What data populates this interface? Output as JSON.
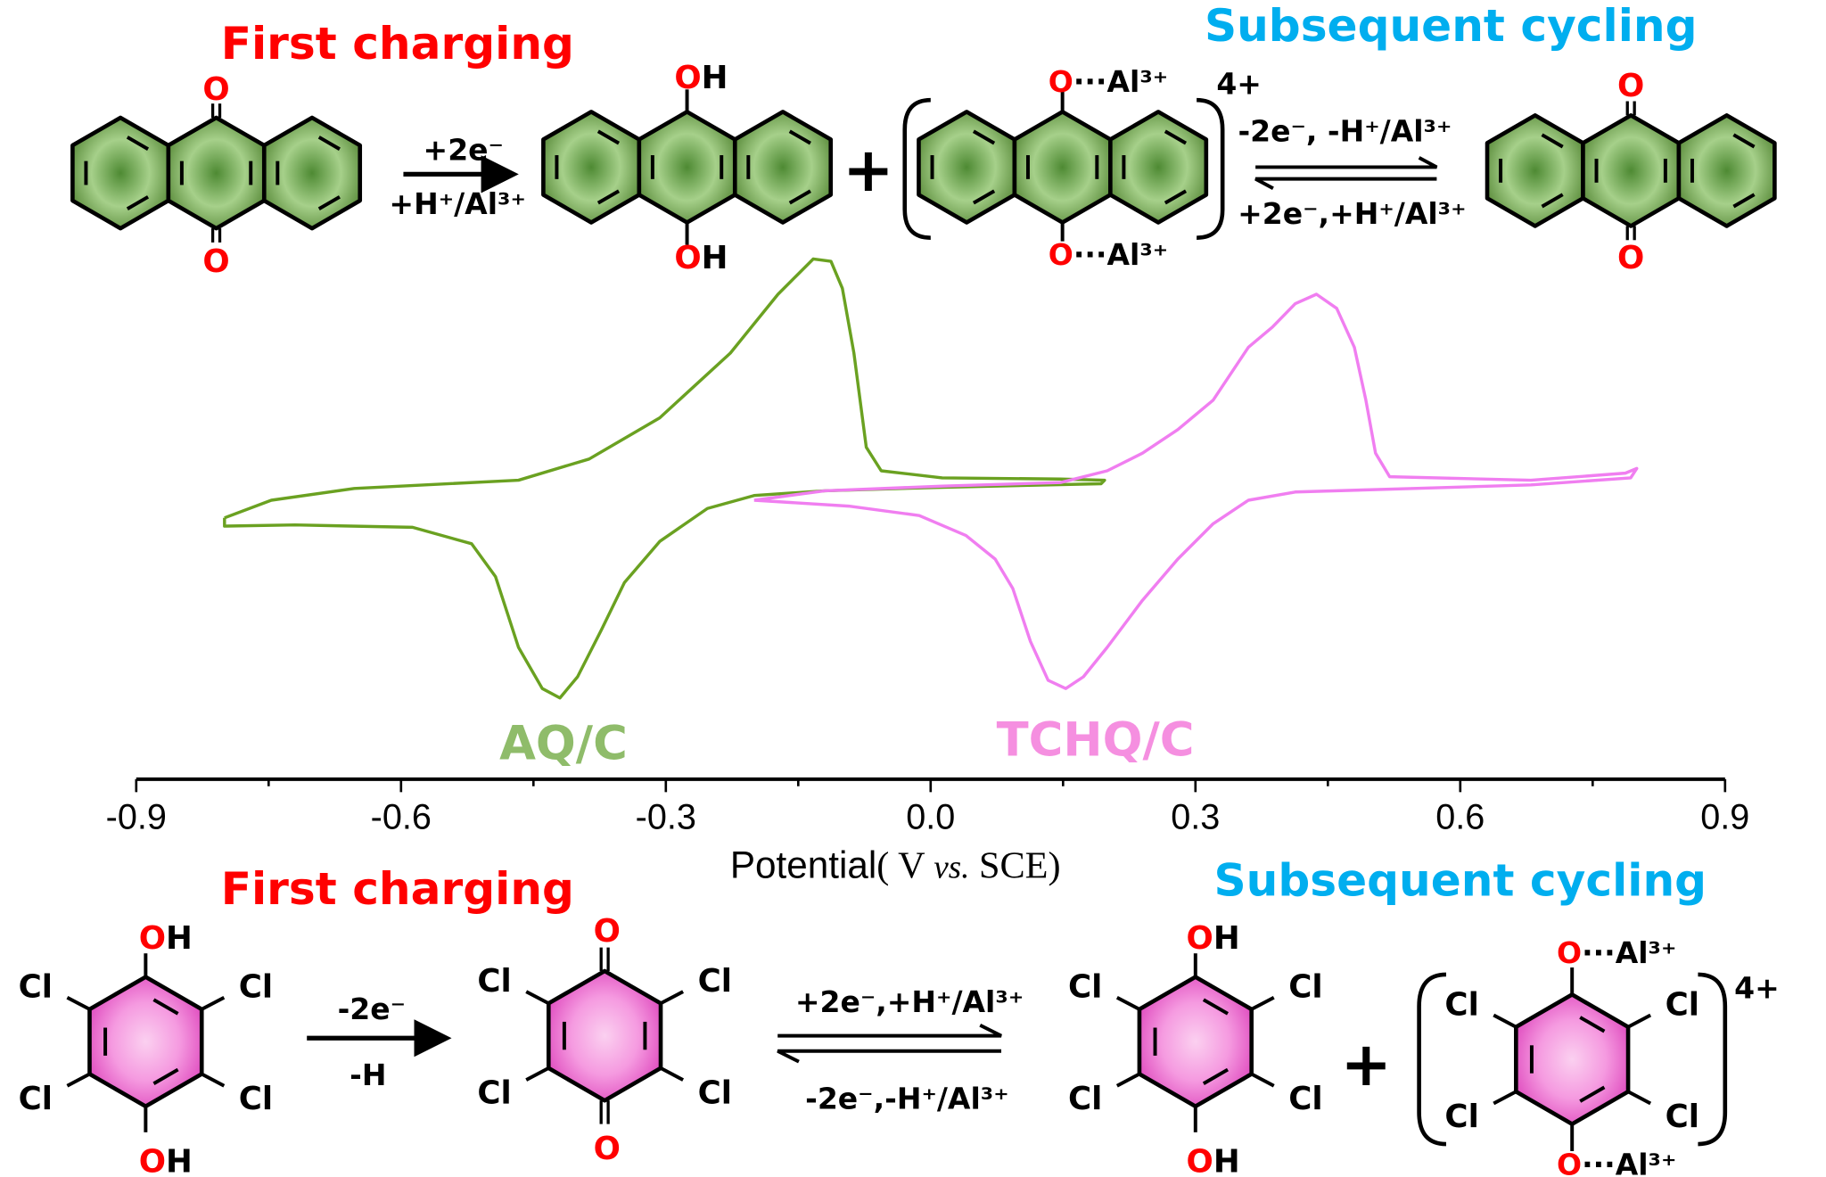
{
  "top_scheme": {
    "title_first": "First charging",
    "title_subsequent": "Subsequent cycling",
    "arrow1_top": "+2e⁻",
    "arrow1_bottom": "+H⁺/Al³⁺",
    "eq_top": "-2e⁻, -H⁺/Al³⁺",
    "eq_bottom": "+2e⁻,+H⁺/Al³⁺",
    "plus": "+",
    "charge": "4+"
  },
  "bottom_scheme": {
    "title_first": "First charging",
    "title_subsequent": "Subsequent cycling",
    "arrow1_top": "-2e⁻",
    "arrow1_bottom": "-H",
    "eq_top": "+2e⁻,+H⁺/Al³⁺",
    "eq_bottom": "-2e⁻,-H⁺/Al³⁺",
    "plus": "+",
    "charge": "4+"
  },
  "atoms": {
    "oxygen": "O",
    "hydrogen": "H",
    "al_coord": "···Al³⁺",
    "chlorine": "Cl"
  },
  "colors": {
    "aq_curve": "#6aa121",
    "tchq_curve": "#f07ef0",
    "aq_label": "#8fbc6a",
    "tchq_label": "#f58fe0",
    "aq_ring": "#5e8f3f",
    "tchq_ring": "#e95fc6",
    "title_red": "#ff0000",
    "title_cyan": "#00aeef"
  },
  "chart_data": {
    "type": "line",
    "title": "",
    "xlabel": "Potential ( V vs. SCE)",
    "xlabel_parts": [
      "Potential",
      "( V ",
      "vs.",
      " SCE)"
    ],
    "ylabel": "",
    "xlim": [
      -0.9,
      0.9
    ],
    "xticks": [
      "-0.9",
      "-0.6",
      "-0.3",
      "0.0",
      "0.3",
      "0.6",
      "0.9"
    ],
    "minor_ticks": true,
    "grid": false,
    "y_axis_shown": false,
    "y_units": "arbitrary current",
    "series": [
      {
        "name": "AQ/C",
        "color": "#6aa121",
        "points": [
          [
            -0.8,
            -0.3
          ],
          [
            -0.747,
            -0.15
          ],
          [
            -0.653,
            -0.05
          ],
          [
            -0.467,
            0.02
          ],
          [
            -0.387,
            0.2
          ],
          [
            -0.307,
            0.55
          ],
          [
            -0.227,
            1.1
          ],
          [
            -0.173,
            1.6
          ],
          [
            -0.133,
            1.9
          ],
          [
            -0.113,
            1.88
          ],
          [
            -0.1,
            1.65
          ],
          [
            -0.087,
            1.1
          ],
          [
            -0.073,
            0.3
          ],
          [
            -0.056,
            0.1
          ],
          [
            0.013,
            0.04
          ],
          [
            0.147,
            0.03
          ],
          [
            0.197,
            0.02
          ],
          [
            0.193,
            -0.01
          ],
          [
            0.013,
            -0.04
          ],
          [
            -0.12,
            -0.07
          ],
          [
            -0.2,
            -0.11
          ],
          [
            -0.253,
            -0.22
          ],
          [
            -0.307,
            -0.5
          ],
          [
            -0.347,
            -0.85
          ],
          [
            -0.373,
            -1.25
          ],
          [
            -0.4,
            -1.65
          ],
          [
            -0.42,
            -1.83
          ],
          [
            -0.44,
            -1.75
          ],
          [
            -0.467,
            -1.4
          ],
          [
            -0.493,
            -0.8
          ],
          [
            -0.52,
            -0.52
          ],
          [
            -0.587,
            -0.38
          ],
          [
            -0.72,
            -0.36
          ],
          [
            -0.8,
            -0.37
          ],
          [
            -0.8,
            -0.3
          ]
        ]
      },
      {
        "name": "TCHQ/C",
        "color": "#f07ef0",
        "points": [
          [
            -0.2,
            -0.15
          ],
          [
            -0.12,
            -0.07
          ],
          [
            0.013,
            -0.03
          ],
          [
            0.147,
            0.0
          ],
          [
            0.2,
            0.1
          ],
          [
            0.24,
            0.25
          ],
          [
            0.28,
            0.45
          ],
          [
            0.32,
            0.7
          ],
          [
            0.36,
            1.15
          ],
          [
            0.387,
            1.32
          ],
          [
            0.413,
            1.52
          ],
          [
            0.437,
            1.6
          ],
          [
            0.46,
            1.48
          ],
          [
            0.48,
            1.15
          ],
          [
            0.493,
            0.7
          ],
          [
            0.504,
            0.25
          ],
          [
            0.52,
            0.05
          ],
          [
            0.68,
            0.02
          ],
          [
            0.787,
            0.08
          ],
          [
            0.8,
            0.12
          ],
          [
            0.793,
            0.04
          ],
          [
            0.68,
            -0.02
          ],
          [
            0.547,
            -0.05
          ],
          [
            0.413,
            -0.08
          ],
          [
            0.36,
            -0.15
          ],
          [
            0.32,
            -0.35
          ],
          [
            0.28,
            -0.65
          ],
          [
            0.24,
            -1.0
          ],
          [
            0.2,
            -1.4
          ],
          [
            0.173,
            -1.65
          ],
          [
            0.153,
            -1.75
          ],
          [
            0.133,
            -1.68
          ],
          [
            0.113,
            -1.35
          ],
          [
            0.093,
            -0.9
          ],
          [
            0.073,
            -0.65
          ],
          [
            0.04,
            -0.45
          ],
          [
            -0.013,
            -0.28
          ],
          [
            -0.093,
            -0.2
          ],
          [
            -0.2,
            -0.15
          ]
        ]
      }
    ],
    "annotations": [
      "AQ/C",
      "TCHQ/C"
    ]
  }
}
